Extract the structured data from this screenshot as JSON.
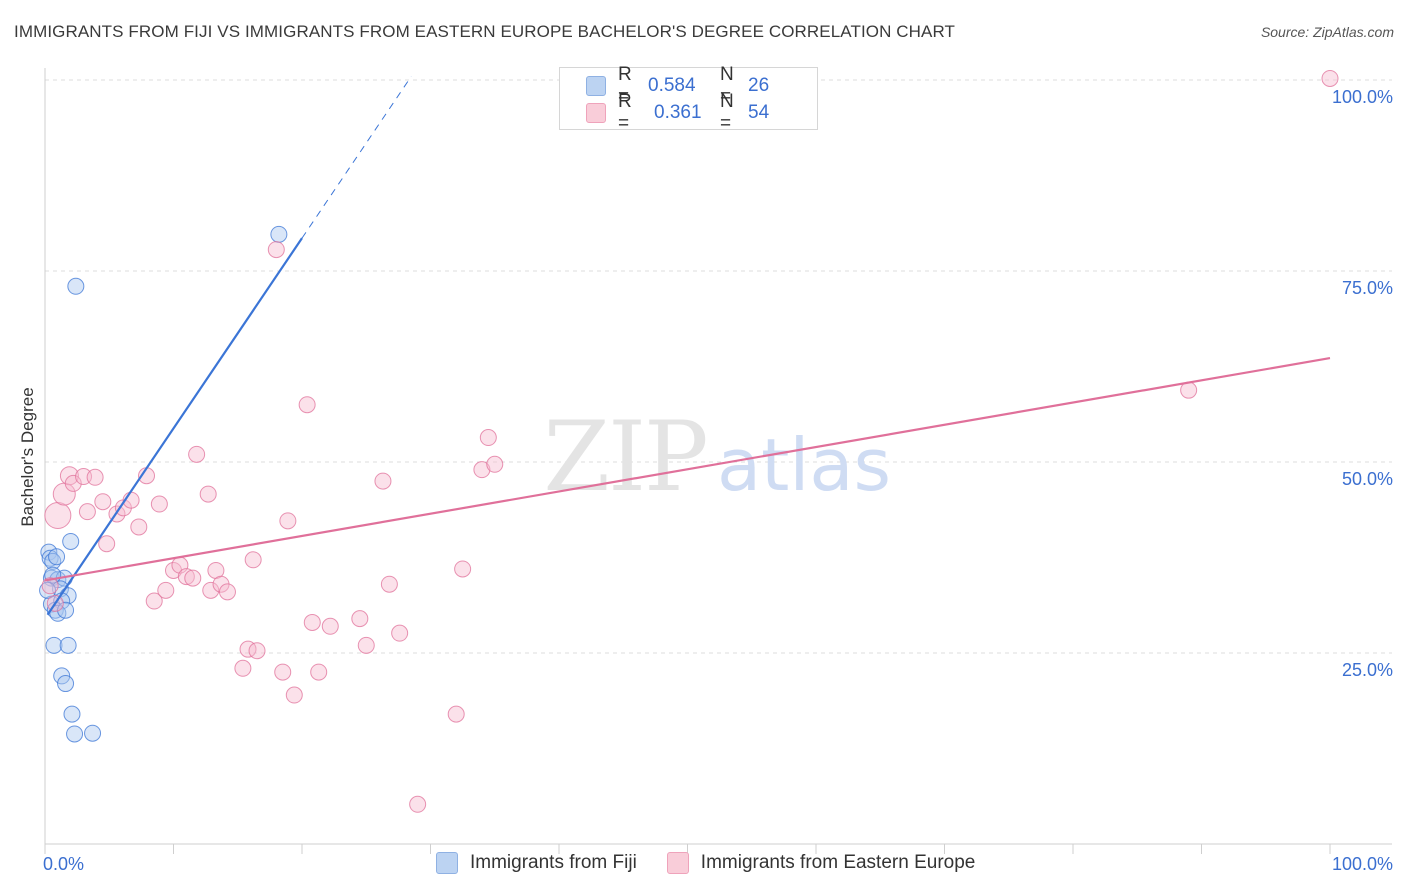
{
  "title": "IMMIGRANTS FROM FIJI VS IMMIGRANTS FROM EASTERN EUROPE BACHELOR'S DEGREE CORRELATION CHART",
  "source": "Source: ZipAtlas.com",
  "watermark": {
    "zip": "ZIP",
    "atlas": "atlas"
  },
  "legend": {
    "r_label": "R =",
    "n_label": "N =",
    "series": [
      {
        "r": "0.584",
        "n": "26"
      },
      {
        "r": "0.361",
        "n": "54"
      }
    ]
  },
  "chart_data": {
    "type": "scatter",
    "title": "IMMIGRANTS FROM FIJI VS IMMIGRANTS FROM EASTERN EUROPE BACHELOR'S DEGREE CORRELATION CHART",
    "xlabel": "",
    "ylabel": "Bachelor's Degree",
    "xlim": [
      0,
      100
    ],
    "ylim": [
      0,
      102
    ],
    "x_tick_labels": [
      "0.0%",
      "100.0%"
    ],
    "y_ticks": [
      25,
      50,
      75,
      100
    ],
    "y_tick_labels": [
      "25.0%",
      "50.0%",
      "75.0%",
      "100.0%"
    ],
    "grid": true,
    "series": [
      {
        "name": "Immigrants from Fiji",
        "color": "#3b75d6",
        "fill": "#aac8f0",
        "r": 0.584,
        "n": 26,
        "trend": {
          "x0": 0.2,
          "y0": 30.0,
          "x1": 20.0,
          "y1": 79.3,
          "dash_to_x": 28.5
        },
        "points": [
          [
            0.3,
            38.2,
            8
          ],
          [
            0.4,
            37.4,
            8
          ],
          [
            0.6,
            37.0,
            8
          ],
          [
            0.9,
            37.6,
            8
          ],
          [
            2.0,
            39.6,
            8
          ],
          [
            0.5,
            34.8,
            8
          ],
          [
            1.0,
            34.6,
            8
          ],
          [
            1.5,
            34.8,
            8
          ],
          [
            1.2,
            33.4,
            8
          ],
          [
            1.8,
            32.5,
            8
          ],
          [
            0.5,
            31.4,
            8
          ],
          [
            1.3,
            31.8,
            8
          ],
          [
            0.8,
            30.6,
            8
          ],
          [
            1.0,
            30.2,
            8
          ],
          [
            1.6,
            30.6,
            8
          ],
          [
            0.7,
            26.0,
            8
          ],
          [
            1.8,
            26.0,
            8
          ],
          [
            1.3,
            22.0,
            8
          ],
          [
            1.6,
            21.0,
            8
          ],
          [
            2.1,
            17.0,
            8
          ],
          [
            2.3,
            14.4,
            8
          ],
          [
            3.7,
            14.5,
            8
          ],
          [
            2.4,
            73.0,
            8
          ],
          [
            18.2,
            79.8,
            8
          ],
          [
            0.2,
            33.2,
            8
          ],
          [
            0.6,
            35.2,
            8
          ]
        ]
      },
      {
        "name": "Immigrants from Eastern Europe",
        "color": "#e0709a",
        "fill": "#f7bcd0",
        "r": 0.361,
        "n": 54,
        "trend": {
          "x0": 0.0,
          "y0": 34.5,
          "x1": 100.0,
          "y1": 63.6
        },
        "points": [
          [
            1.0,
            43.0,
            13
          ],
          [
            1.5,
            45.8,
            11
          ],
          [
            1.9,
            48.2,
            9
          ],
          [
            2.2,
            47.2,
            8
          ],
          [
            3.0,
            48.1,
            8
          ],
          [
            3.9,
            48.0,
            8
          ],
          [
            0.8,
            31.5,
            8
          ],
          [
            3.3,
            43.5,
            8
          ],
          [
            4.5,
            44.8,
            8
          ],
          [
            4.8,
            39.3,
            8
          ],
          [
            5.6,
            43.2,
            8
          ],
          [
            6.1,
            44.0,
            8
          ],
          [
            6.7,
            45.0,
            8
          ],
          [
            7.3,
            41.5,
            8
          ],
          [
            7.9,
            48.2,
            8
          ],
          [
            8.5,
            31.8,
            8
          ],
          [
            8.9,
            44.5,
            8
          ],
          [
            9.4,
            33.2,
            8
          ],
          [
            10.0,
            35.8,
            8
          ],
          [
            10.5,
            36.5,
            8
          ],
          [
            11.0,
            35.0,
            8
          ],
          [
            11.5,
            34.8,
            8
          ],
          [
            11.8,
            51.0,
            8
          ],
          [
            12.7,
            45.8,
            8
          ],
          [
            12.9,
            33.2,
            8
          ],
          [
            13.3,
            35.8,
            8
          ],
          [
            13.7,
            34.0,
            8
          ],
          [
            14.2,
            33.0,
            8
          ],
          [
            15.4,
            23.0,
            8
          ],
          [
            15.8,
            25.5,
            8
          ],
          [
            16.5,
            25.3,
            8
          ],
          [
            16.2,
            37.2,
            8
          ],
          [
            18.0,
            77.8,
            8
          ],
          [
            18.5,
            22.5,
            8
          ],
          [
            18.9,
            42.3,
            8
          ],
          [
            19.4,
            19.5,
            8
          ],
          [
            20.4,
            57.5,
            8
          ],
          [
            20.8,
            29.0,
            8
          ],
          [
            21.3,
            22.5,
            8
          ],
          [
            22.2,
            28.5,
            8
          ],
          [
            24.5,
            29.5,
            8
          ],
          [
            25.0,
            26.0,
            8
          ],
          [
            26.3,
            47.5,
            8
          ],
          [
            26.8,
            34.0,
            8
          ],
          [
            27.6,
            27.6,
            8
          ],
          [
            29.0,
            5.2,
            8
          ],
          [
            32.0,
            17.0,
            8
          ],
          [
            32.5,
            36.0,
            8
          ],
          [
            34.0,
            49.0,
            8
          ],
          [
            34.5,
            53.2,
            8
          ],
          [
            35.0,
            49.7,
            8
          ],
          [
            89.0,
            59.4,
            8
          ],
          [
            100.0,
            100.2,
            8
          ],
          [
            0.4,
            33.8,
            8
          ]
        ]
      }
    ]
  }
}
